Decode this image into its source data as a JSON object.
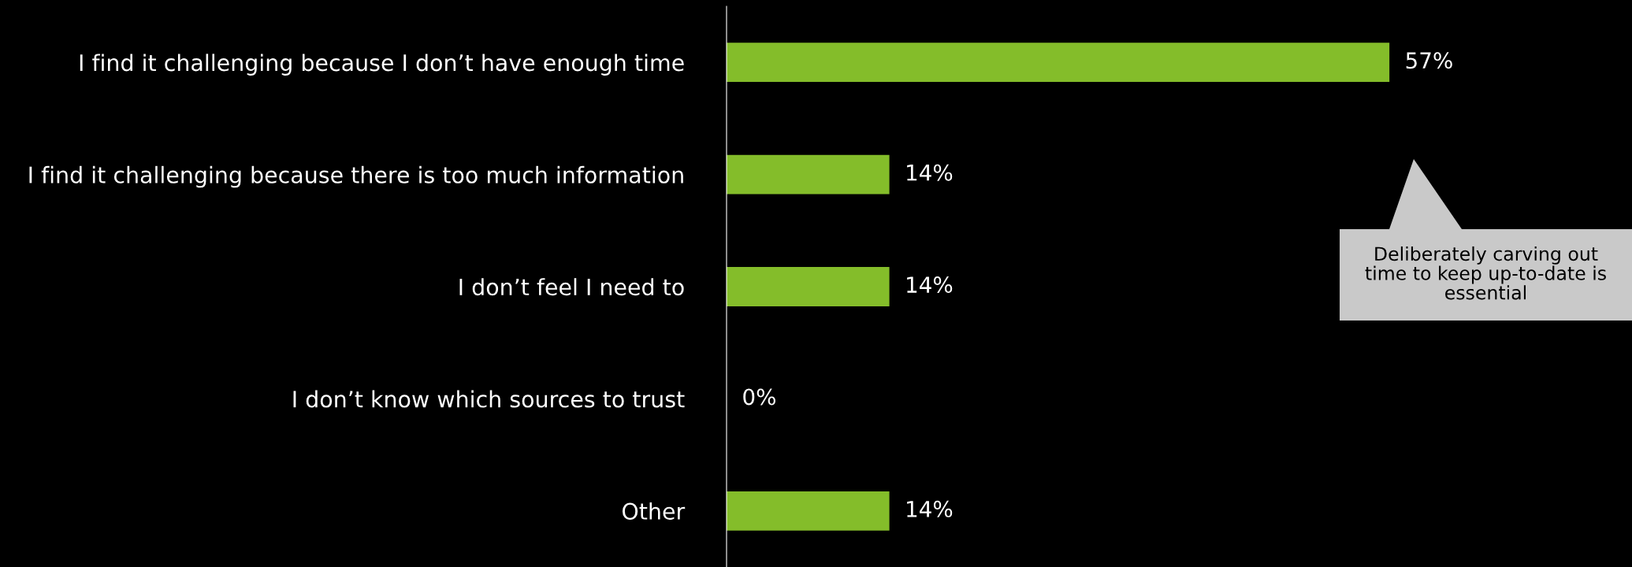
{
  "chart_data": {
    "type": "bar",
    "orientation": "horizontal",
    "categories": [
      "I find it challenging because I don’t have enough time",
      "I find it challenging because there is too much information",
      "I don’t feel I need to",
      "I don’t know which sources to trust",
      "Other"
    ],
    "values": [
      57,
      14,
      14,
      0,
      14
    ],
    "value_labels": [
      "57%",
      "14%",
      "14%",
      "0%",
      "14%"
    ],
    "color": "#84bd2a",
    "annotations": [
      "Deliberately carving out\ntime to keep up-to-date is\nessential"
    ],
    "grid": false,
    "legend": false
  }
}
